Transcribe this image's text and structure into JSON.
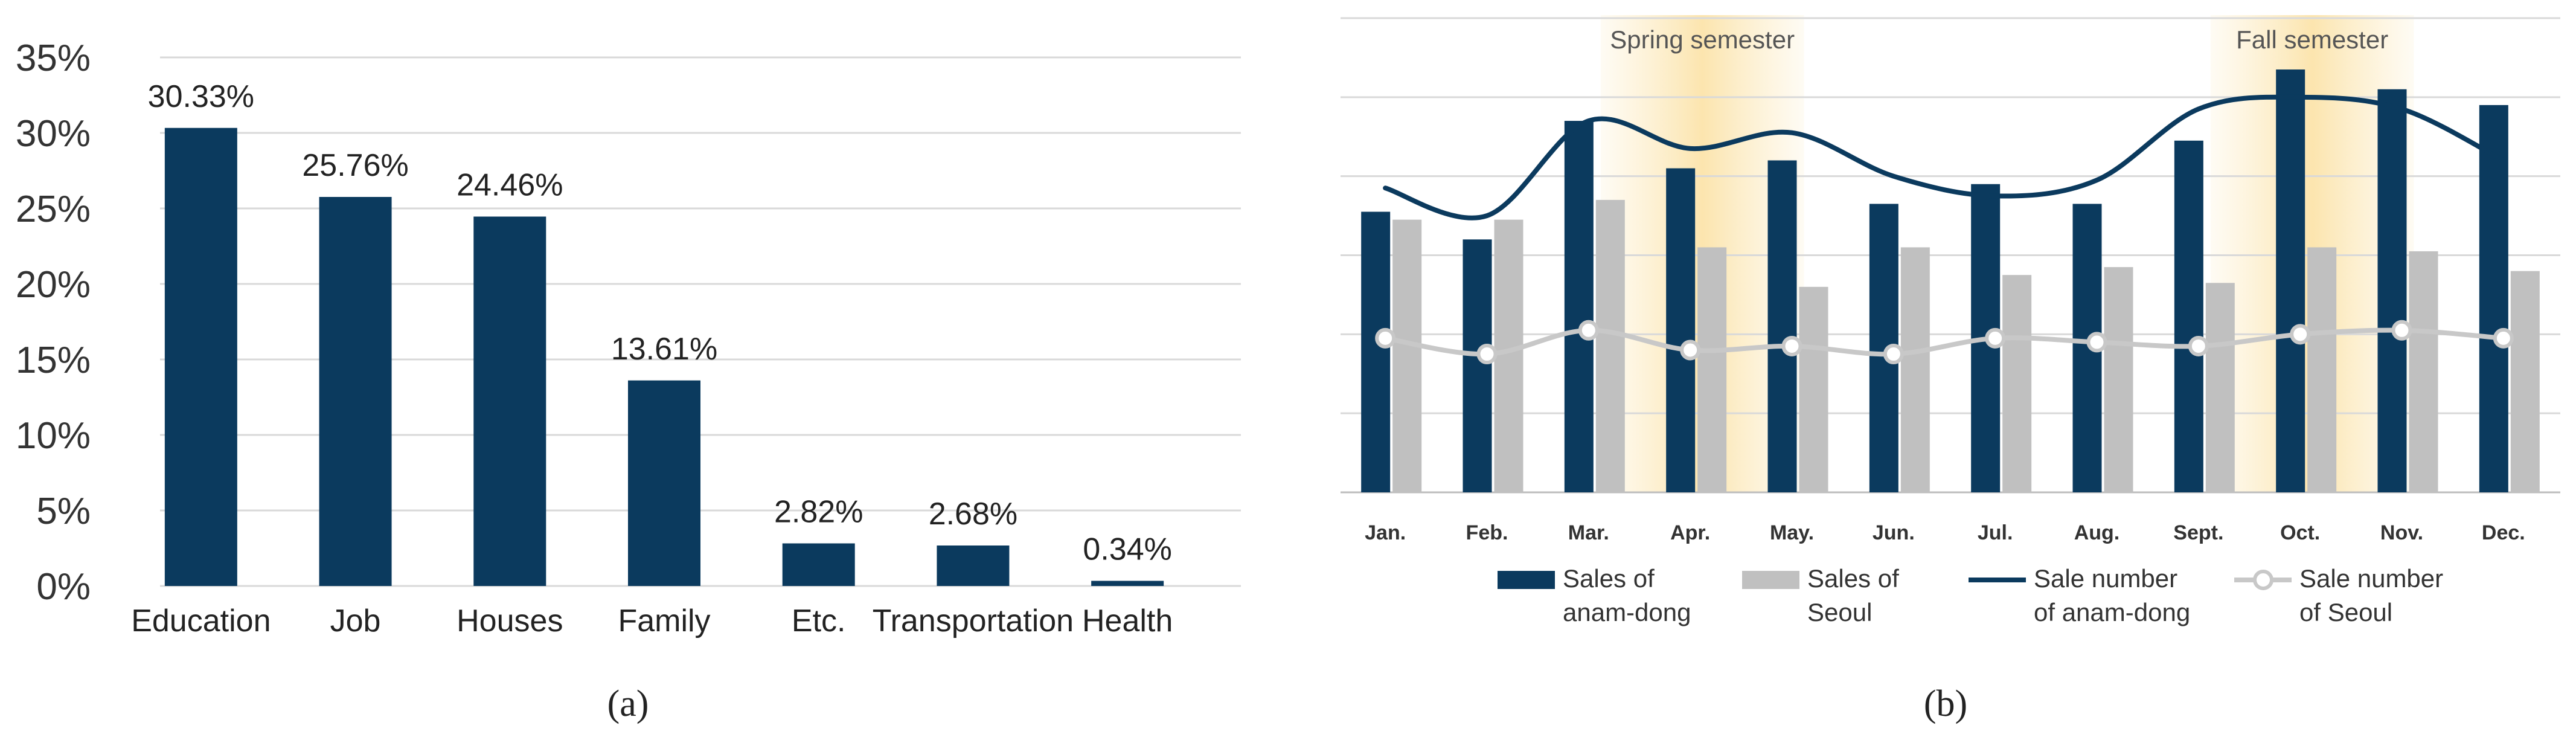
{
  "chart_data": [
    {
      "type": "bar",
      "panel_label": "(a)",
      "categories": [
        "Education",
        "Job",
        "Houses",
        "Family",
        "Etc.",
        "Transportation",
        "Health"
      ],
      "values": [
        30.33,
        25.76,
        24.46,
        13.61,
        2.82,
        2.68,
        0.34
      ],
      "data_labels": [
        "30.33%",
        "25.76%",
        "24.46%",
        "13.61%",
        "2.82%",
        "2.68%",
        "0.34%"
      ],
      "yticks": [
        "0%",
        "5%",
        "10%",
        "15%",
        "20%",
        "25%",
        "30%",
        "35%"
      ],
      "ylim": [
        0,
        35
      ],
      "grid": true,
      "colors": {
        "bar": "#0b3a5e",
        "grid": "#d9d9d9",
        "text": "#222222"
      }
    },
    {
      "type": "bar",
      "panel_label": "(b)",
      "categories": [
        "Jan.",
        "Feb.",
        "Mar.",
        "Apr.",
        "May.",
        "Jun.",
        "Jul.",
        "Aug.",
        "Sept.",
        "Oct.",
        "Nov.",
        "Dec."
      ],
      "series": [
        {
          "name": "Sales of anam-dong",
          "kind": "bar",
          "values": [
            71,
            64,
            94,
            82,
            84,
            73,
            78,
            73,
            89,
            107,
            102,
            98
          ]
        },
        {
          "name": "Sales of Seoul",
          "kind": "bar",
          "values": [
            69,
            69,
            74,
            62,
            52,
            62,
            55,
            57,
            53,
            62,
            61,
            56
          ]
        },
        {
          "name": "Sale number of anam-dong",
          "kind": "line",
          "values": [
            77,
            70,
            94,
            87,
            91,
            80,
            75,
            79,
            97,
            100,
            97,
            84
          ]
        },
        {
          "name": "Sale number of Seoul",
          "kind": "line-marker",
          "values": [
            39,
            35,
            41,
            36,
            37,
            35,
            39,
            38,
            37,
            40,
            41,
            39
          ]
        }
      ],
      "legend": [
        {
          "name_line1": "Sales of",
          "name_line2": "anam-dong",
          "kind": "bar"
        },
        {
          "name_line1": "Sales of",
          "name_line2": "Seoul",
          "kind": "bar"
        },
        {
          "name_line1": "Sale number",
          "name_line2": "of anam-dong",
          "kind": "line"
        },
        {
          "name_line1": "Sale number",
          "name_line2": "of Seoul",
          "kind": "line-marker"
        }
      ],
      "annotations": [
        {
          "text": "Spring semester",
          "from_month": "Mar.",
          "to_month": "May."
        },
        {
          "text": "Fall semester",
          "from_month": "Sept.",
          "to_month": "Nov."
        }
      ],
      "ylim": [
        0,
        120
      ],
      "legend_position": "bottom",
      "grid": true,
      "colors": {
        "anam_bar": "#0b3a5e",
        "seoul_bar": "#c0c0c0",
        "anam_line": "#0b3a5e",
        "seoul_line": "#c8c8c8",
        "semester_band": "#fbe7b5",
        "grid": "#d9d9d9",
        "text": "#222222"
      }
    }
  ]
}
